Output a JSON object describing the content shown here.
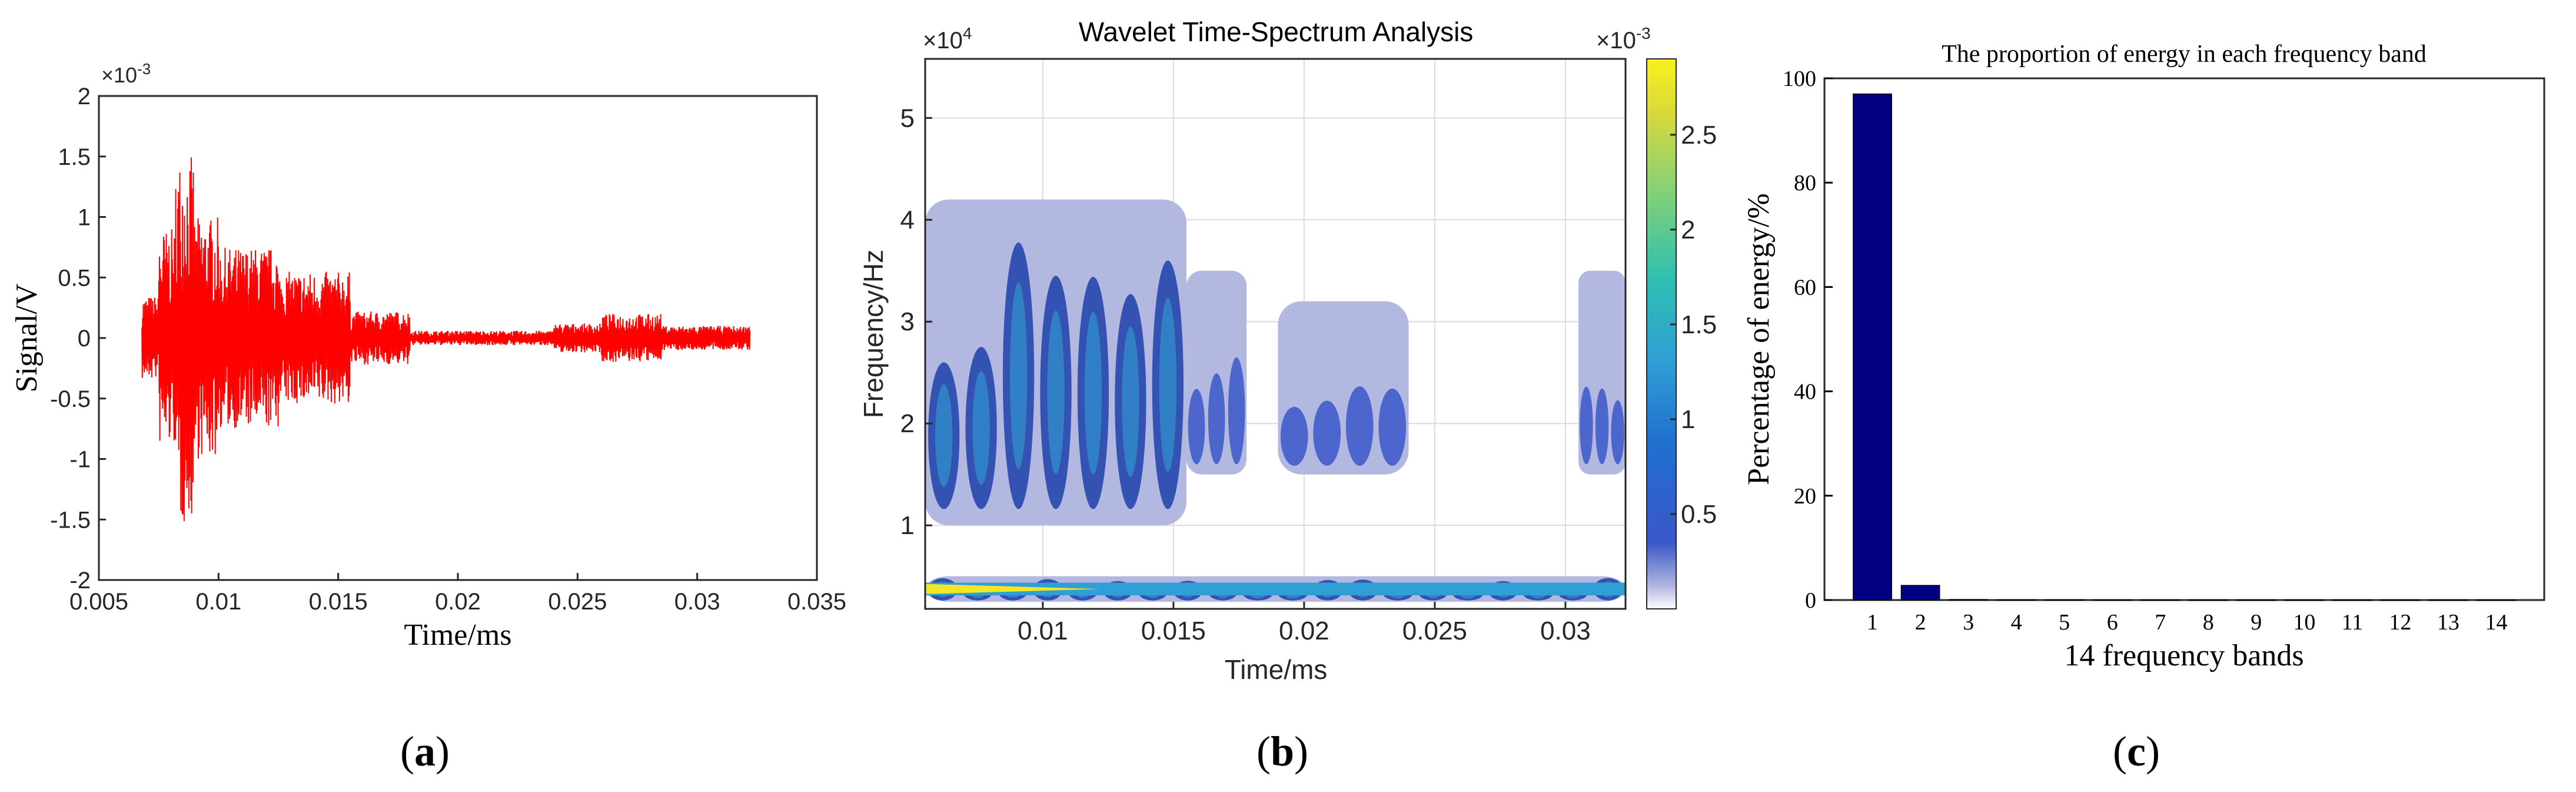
{
  "colors": {
    "signal": "#ff0000",
    "bars": "#000080",
    "axis": "#262626",
    "spectrum_light": "#b3b8e0",
    "spectrum_mid": "#3a57c9",
    "spectrum_dark": "#1c3fa8",
    "spectrum_cyan": "#2f9fd6",
    "spectrum_green": "#5cc89a",
    "spectrum_yellow": "#f5e625"
  },
  "chart_data": [
    {
      "id": "a",
      "type": "line",
      "panel_label": "(a)",
      "panel_letter": "a",
      "xlabel": "Time/ms",
      "ylabel": "Signal/V",
      "y_exponent_label": "×10",
      "y_exponent_power": "-3",
      "xlim": [
        0.005,
        0.035
      ],
      "ylim": [
        -2,
        2
      ],
      "xticks": [
        0.005,
        0.01,
        0.015,
        0.02,
        0.025,
        0.03,
        0.035
      ],
      "xtick_labels": [
        "0.005",
        "0.01",
        "0.015",
        "0.02",
        "0.025",
        "0.03",
        "0.035"
      ],
      "yticks": [
        -2,
        -1.5,
        -1,
        -0.5,
        0,
        0.5,
        1,
        1.5,
        2
      ],
      "ytick_labels": [
        "-2",
        "-1.5",
        "-1",
        "-0.5",
        "0",
        "0.5",
        "1",
        "1.5",
        "2"
      ],
      "grid": false,
      "series": [
        {
          "name": "Signal",
          "description": "Acoustic emission waveform, units ×10^-3 V",
          "segments": [
            {
              "t_start": 0.0068,
              "t_end": 0.0075,
              "amplitude": 0.35
            },
            {
              "t_start": 0.0075,
              "t_end": 0.0082,
              "amplitude": 0.9
            },
            {
              "t_start": 0.0082,
              "t_end": 0.009,
              "amplitude": 1.5
            },
            {
              "t_start": 0.009,
              "t_end": 0.01,
              "amplitude": 1.0
            },
            {
              "t_start": 0.01,
              "t_end": 0.0125,
              "amplitude": 0.75
            },
            {
              "t_start": 0.0125,
              "t_end": 0.0155,
              "amplitude": 0.55
            },
            {
              "t_start": 0.0155,
              "t_end": 0.018,
              "amplitude": 0.22
            },
            {
              "t_start": 0.018,
              "t_end": 0.024,
              "amplitude": 0.06
            },
            {
              "t_start": 0.024,
              "t_end": 0.026,
              "amplitude": 0.12
            },
            {
              "t_start": 0.026,
              "t_end": 0.0285,
              "amplitude": 0.2
            },
            {
              "t_start": 0.0285,
              "t_end": 0.0322,
              "amplitude": 0.1
            }
          ],
          "peak": {
            "t": 0.0085,
            "max": 1.5,
            "min": -1.55
          }
        }
      ]
    },
    {
      "id": "b",
      "type": "heatmap",
      "panel_label": "(b)",
      "panel_letter": "b",
      "title": "Wavelet Time-Spectrum Analysis",
      "xlabel": "Time/ms",
      "ylabel": "Frequency/Hz",
      "y_exponent_label": "×10",
      "y_exponent_power": "4",
      "colorbar_exponent_label": "×10",
      "colorbar_exponent_power": "-3",
      "xlim": [
        0.0055,
        0.0323
      ],
      "ylim": [
        1800,
        55800
      ],
      "xticks": [
        0.01,
        0.015,
        0.02,
        0.025,
        0.03
      ],
      "xtick_labels": [
        "0.01",
        "0.015",
        "0.02",
        "0.025",
        "0.03"
      ],
      "yticks": [
        10000,
        20000,
        30000,
        40000,
        50000
      ],
      "ytick_labels": [
        "1",
        "2",
        "3",
        "4",
        "5"
      ],
      "colorbar_range": [
        0,
        2.9
      ],
      "colorbar_ticks": [
        0.5,
        1,
        1.5,
        2,
        2.5
      ],
      "colorbar_tick_labels": [
        "0.5",
        "1",
        "1.5",
        "2",
        "2.5"
      ],
      "grid": true,
      "regions": [
        {
          "t_start": 0.0055,
          "t_end": 0.0155,
          "f_low": 10000,
          "f_high": 42000,
          "level": 0.9,
          "note": "main burst"
        },
        {
          "t_start": 0.0155,
          "t_end": 0.0178,
          "f_low": 15000,
          "f_high": 35000,
          "level": 0.5
        },
        {
          "t_start": 0.019,
          "t_end": 0.024,
          "f_low": 15000,
          "f_high": 32000,
          "level": 0.45
        },
        {
          "t_start": 0.0305,
          "t_end": 0.0323,
          "f_low": 15000,
          "f_high": 35000,
          "level": 0.3
        },
        {
          "t_start": 0.0055,
          "t_end": 0.0323,
          "f_low": 2500,
          "f_high": 5000,
          "level": 1.2,
          "note": "low-frequency band"
        }
      ]
    },
    {
      "id": "c",
      "type": "bar",
      "panel_label": "(c)",
      "panel_letter": "c",
      "title": "The proportion of energy in each frequency band",
      "xlabel": "14 frequency bands",
      "ylabel": "Percentage of energy/%",
      "categories": [
        "1",
        "2",
        "3",
        "4",
        "5",
        "6",
        "7",
        "8",
        "9",
        "10",
        "11",
        "12",
        "13",
        "14"
      ],
      "values": [
        97.0,
        2.8,
        0.1,
        0.05,
        0.05,
        0.03,
        0.03,
        0.02,
        0.02,
        0.02,
        0.02,
        0.02,
        0.02,
        0.02
      ],
      "ylim": [
        0,
        100
      ],
      "yticks": [
        0,
        20,
        40,
        60,
        80,
        100
      ],
      "ytick_labels": [
        "0",
        "20",
        "40",
        "60",
        "80",
        "100"
      ],
      "grid": false
    }
  ]
}
